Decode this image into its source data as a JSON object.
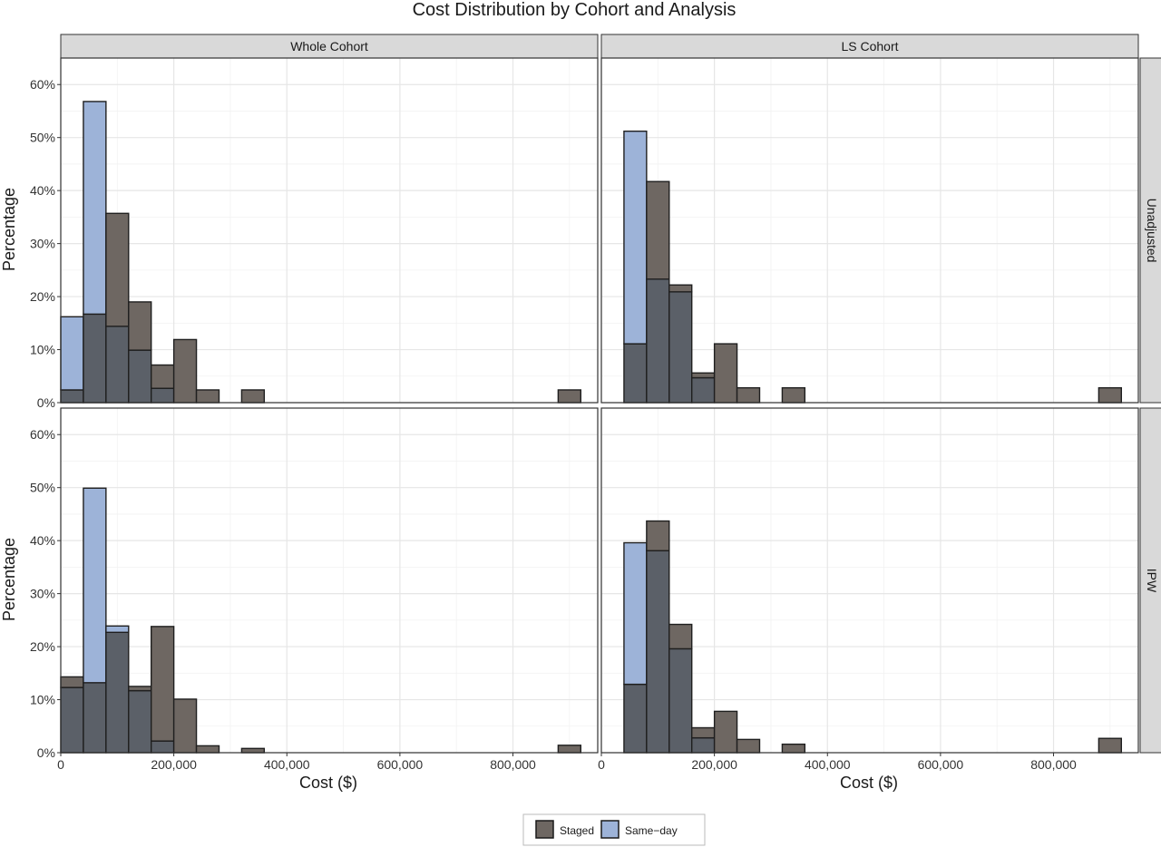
{
  "chart_data": {
    "type": "bar",
    "title": "Cost Distribution by Cohort and Analysis",
    "xlabel": "Cost ($)",
    "ylabel": "Percentage",
    "xlim": [
      0,
      950000
    ],
    "ylim": [
      0,
      65
    ],
    "x_ticks": [
      0,
      200000,
      400000,
      600000,
      800000
    ],
    "x_tick_labels": [
      "0",
      "200,000",
      "400,000",
      "600,000",
      "800,000"
    ],
    "y_ticks": [
      0,
      10,
      20,
      30,
      40,
      50,
      60
    ],
    "y_tick_labels": [
      "0%",
      "10%",
      "20%",
      "30%",
      "40%",
      "50%",
      "60%"
    ],
    "grid": true,
    "legend_position": "bottom",
    "bin_width": 40000,
    "bin_centers": [
      20000,
      60000,
      100000,
      140000,
      180000,
      220000,
      260000,
      300000,
      340000,
      380000,
      420000,
      460000,
      500000,
      540000,
      580000,
      620000,
      660000,
      700000,
      740000,
      780000,
      820000,
      860000,
      900000
    ],
    "columns": [
      "Whole Cohort",
      "LS Cohort"
    ],
    "rows": [
      "Unadjusted",
      "IPW"
    ],
    "series_names": [
      "Staged",
      "Same−day"
    ],
    "series_colors": [
      "#6e6762",
      "#9db3d8"
    ],
    "overlap_color": "#5b6068",
    "panels": [
      {
        "cohort": "Whole Cohort",
        "analysis": "Unadjusted",
        "series": [
          {
            "name": "Staged",
            "values": [
              2.4,
              16.7,
              35.7,
              19.0,
              7.1,
              11.9,
              2.4,
              0,
              2.4,
              0,
              0,
              0,
              0,
              0,
              0,
              0,
              0,
              0,
              0,
              0,
              0,
              0,
              2.4
            ]
          },
          {
            "name": "Same−day",
            "values": [
              16.2,
              56.8,
              14.4,
              9.9,
              2.7,
              0,
              0,
              0,
              0,
              0,
              0,
              0,
              0,
              0,
              0,
              0,
              0,
              0,
              0,
              0,
              0,
              0,
              0
            ]
          }
        ]
      },
      {
        "cohort": "LS Cohort",
        "analysis": "Unadjusted",
        "series": [
          {
            "name": "Staged",
            "values": [
              0,
              11.1,
              41.7,
              22.2,
              5.6,
              11.1,
              2.8,
              0,
              2.8,
              0,
              0,
              0,
              0,
              0,
              0,
              0,
              0,
              0,
              0,
              0,
              0,
              0,
              2.8
            ]
          },
          {
            "name": "Same−day",
            "values": [
              0,
              51.2,
              23.3,
              20.9,
              4.7,
              0,
              0,
              0,
              0,
              0,
              0,
              0,
              0,
              0,
              0,
              0,
              0,
              0,
              0,
              0,
              0,
              0,
              0
            ]
          }
        ]
      },
      {
        "cohort": "Whole Cohort",
        "analysis": "IPW",
        "series": [
          {
            "name": "Staged",
            "values": [
              14.3,
              13.2,
              22.7,
              12.5,
              23.8,
              10.1,
              1.3,
              0,
              0.8,
              0,
              0,
              0,
              0,
              0,
              0,
              0,
              0,
              0,
              0,
              0,
              0,
              0,
              1.4
            ]
          },
          {
            "name": "Same−day",
            "values": [
              12.3,
              49.9,
              23.9,
              11.7,
              2.2,
              0,
              0,
              0,
              0,
              0,
              0,
              0,
              0,
              0,
              0,
              0,
              0,
              0,
              0,
              0,
              0,
              0,
              0
            ]
          }
        ]
      },
      {
        "cohort": "LS Cohort",
        "analysis": "IPW",
        "series": [
          {
            "name": "Staged",
            "values": [
              0,
              12.9,
              43.7,
              24.2,
              4.7,
              7.8,
              2.5,
              0,
              1.6,
              0,
              0,
              0,
              0,
              0,
              0,
              0,
              0,
              0,
              0,
              0,
              0,
              0,
              2.7
            ]
          },
          {
            "name": "Same−day",
            "values": [
              0,
              39.6,
              38.1,
              19.6,
              2.8,
              0,
              0,
              0,
              0,
              0,
              0,
              0,
              0,
              0,
              0,
              0,
              0,
              0,
              0,
              0,
              0,
              0,
              0
            ]
          }
        ]
      }
    ]
  }
}
